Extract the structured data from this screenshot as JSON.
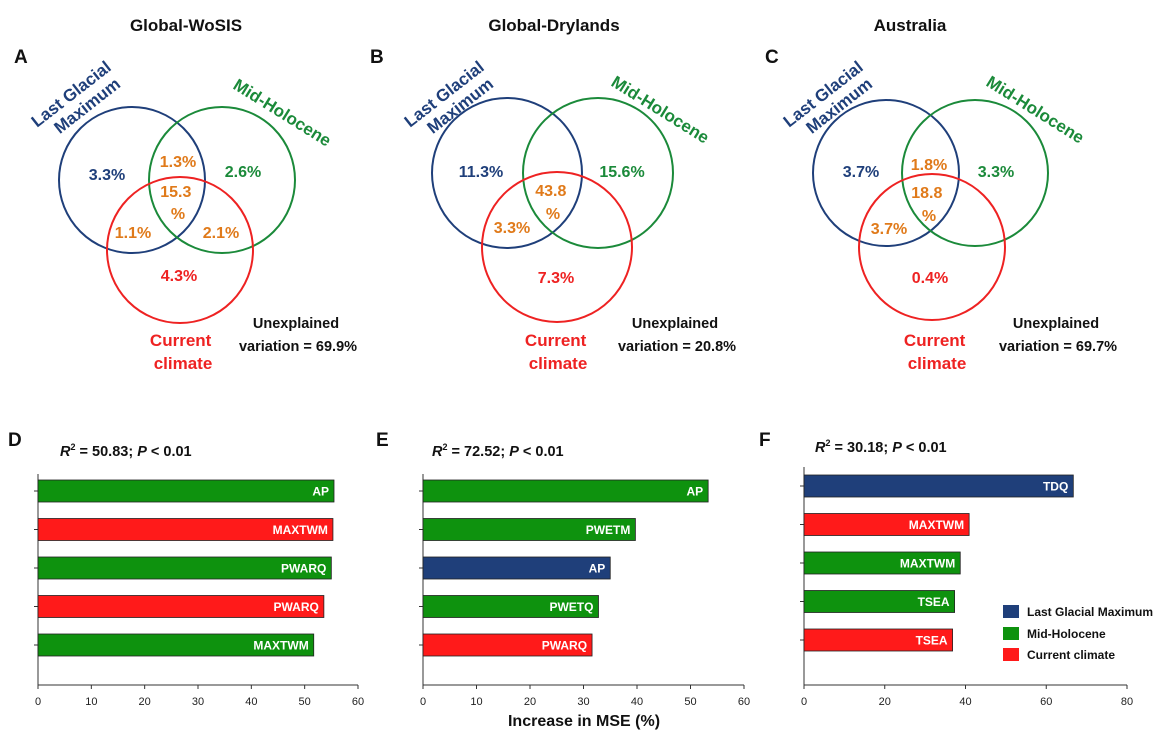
{
  "colors": {
    "last_glacial": "#1f3f7a",
    "mid_holocene": "#1b8a3a",
    "current": "#ee2222",
    "overlap": "#e07a1a",
    "bar_last_glacial": "#1f3f7a",
    "bar_mid_holocene": "#0e920e",
    "bar_current": "#ff1a1a"
  },
  "venn_panels": [
    {
      "panel_label": "A",
      "title": "Global-WoSIS",
      "set_labels": {
        "last_glacial": [
          "Last Glacial",
          "Maximum"
        ],
        "mid_holocene": "Mid-Holocene",
        "current": [
          "Current",
          "climate"
        ]
      },
      "values": {
        "lgm_only": "3.3%",
        "mh_only": "2.6%",
        "cur_only": "4.3%",
        "lgm_mh": "1.3%",
        "lgm_cur": "1.1%",
        "mh_cur": "2.1%",
        "all": [
          "15.3",
          "%"
        ]
      },
      "unexplained": [
        "Unexplained",
        "variation = 69.9%"
      ]
    },
    {
      "panel_label": "B",
      "title": "Global-Drylands",
      "set_labels": {
        "last_glacial": [
          "Last Glacial",
          "Maximum"
        ],
        "mid_holocene": "Mid-Holocene",
        "current": [
          "Current",
          "climate"
        ]
      },
      "values": {
        "lgm_only": "11.3%",
        "mh_only": "15.6%",
        "cur_only": "7.3%",
        "lgm_mh": "",
        "lgm_cur": "3.3%",
        "mh_cur": "",
        "all": [
          "43.8",
          "%"
        ]
      },
      "unexplained": [
        "Unexplained",
        "variation = 20.8%"
      ]
    },
    {
      "panel_label": "C",
      "title": "Australia",
      "set_labels": {
        "last_glacial": [
          "Last Glacial",
          "Maximum"
        ],
        "mid_holocene": "Mid-Holocene",
        "current": [
          "Current",
          "climate"
        ]
      },
      "values": {
        "lgm_only": "3.7%",
        "mh_only": "3.3%",
        "cur_only": "0.4%",
        "lgm_mh": "1.8%",
        "lgm_cur": "3.7%",
        "mh_cur": "",
        "all": [
          "18.8",
          "%"
        ]
      },
      "unexplained": [
        "Unexplained",
        "variation = 69.7%"
      ]
    }
  ],
  "shared_xlabel": "Increase in MSE (%)",
  "legend": [
    {
      "label": "Last Glacial Maximum",
      "group": "last_glacial"
    },
    {
      "label": "Mid-Holocene",
      "group": "mid_holocene"
    },
    {
      "label": "Current climate",
      "group": "current"
    }
  ],
  "chart_data": [
    {
      "type": "bar",
      "orientation": "horizontal",
      "panel_label": "D",
      "r2_value": "50.83",
      "p_value": "0.01",
      "categories": [
        "AP",
        "MAXTWM",
        "PWARQ",
        "PWARQ",
        "MAXTWM"
      ],
      "groups": [
        "mid_holocene",
        "current",
        "mid_holocene",
        "current",
        "mid_holocene"
      ],
      "values": [
        55.5,
        55.3,
        55.0,
        53.6,
        51.7
      ],
      "xlim": [
        0,
        60
      ],
      "xticks": [
        0,
        10,
        20,
        30,
        40,
        50,
        60
      ]
    },
    {
      "type": "bar",
      "orientation": "horizontal",
      "panel_label": "E",
      "r2_value": "72.52",
      "p_value": "0.01",
      "categories": [
        "AP",
        "PWETM",
        "AP",
        "PWETQ",
        "PWARQ"
      ],
      "groups": [
        "mid_holocene",
        "mid_holocene",
        "last_glacial",
        "mid_holocene",
        "current"
      ],
      "values": [
        53.3,
        39.7,
        35.0,
        32.8,
        31.6
      ],
      "xlim": [
        0,
        60
      ],
      "xticks": [
        0,
        10,
        20,
        30,
        40,
        50,
        60
      ]
    },
    {
      "type": "bar",
      "orientation": "horizontal",
      "panel_label": "F",
      "r2_value": "30.18",
      "p_value": "0.01",
      "categories": [
        "TDQ",
        "MAXTWM",
        "MAXTWM",
        "TSEA",
        "TSEA"
      ],
      "groups": [
        "last_glacial",
        "current",
        "mid_holocene",
        "mid_holocene",
        "current"
      ],
      "values": [
        66.7,
        40.9,
        38.7,
        37.3,
        36.8
      ],
      "xlim": [
        0,
        80
      ],
      "xticks": [
        0,
        20,
        40,
        60,
        80
      ]
    }
  ]
}
